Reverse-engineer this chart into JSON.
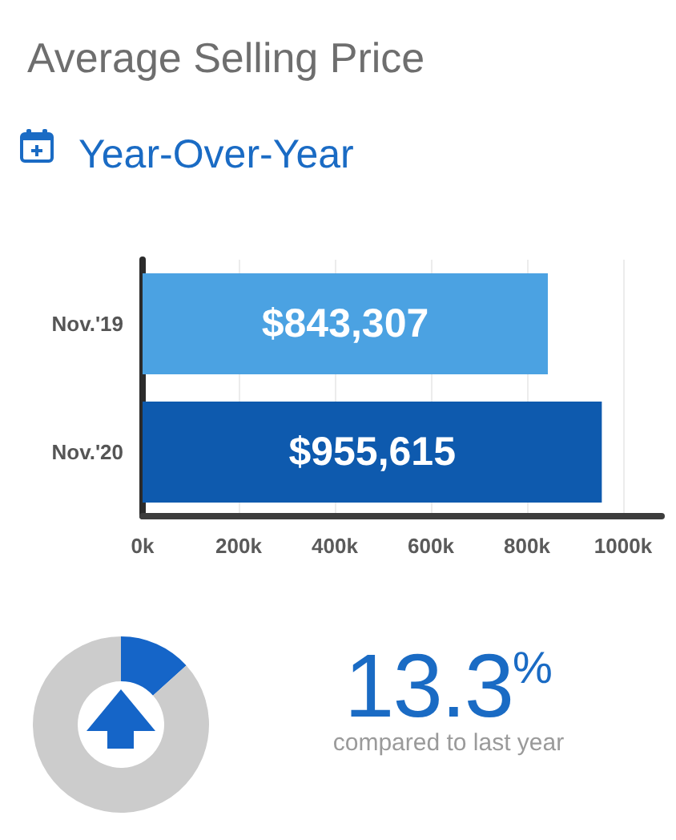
{
  "chart_data": [
    {
      "type": "bar",
      "title": "Average Selling Price",
      "subtitle": "Year-Over-Year",
      "orientation": "horizontal",
      "categories": [
        "Nov.'19",
        "Nov.'20"
      ],
      "values": [
        843307,
        955615
      ],
      "colors": [
        "#4ba2e2",
        "#0e5aae"
      ],
      "value_labels": [
        "$843,307",
        "$955,615"
      ],
      "xlim": [
        0,
        1080000
      ],
      "xticks": [
        {
          "value": 0,
          "label": "0k"
        },
        {
          "value": 200000,
          "label": "200k"
        },
        {
          "value": 400000,
          "label": "400k"
        },
        {
          "value": 600000,
          "label": "600k"
        },
        {
          "value": 800000,
          "label": "800k"
        },
        {
          "value": 1000000,
          "label": "1000k"
        }
      ],
      "grid": "x"
    },
    {
      "type": "donut",
      "categories": [
        null,
        null
      ],
      "values": [
        13.3,
        86.7
      ],
      "colors": [
        "#1565c8",
        "#cccccc"
      ],
      "annotations": [
        "13.3$^{%}$",
        "compared to last year"
      ]
    }
  ]
}
